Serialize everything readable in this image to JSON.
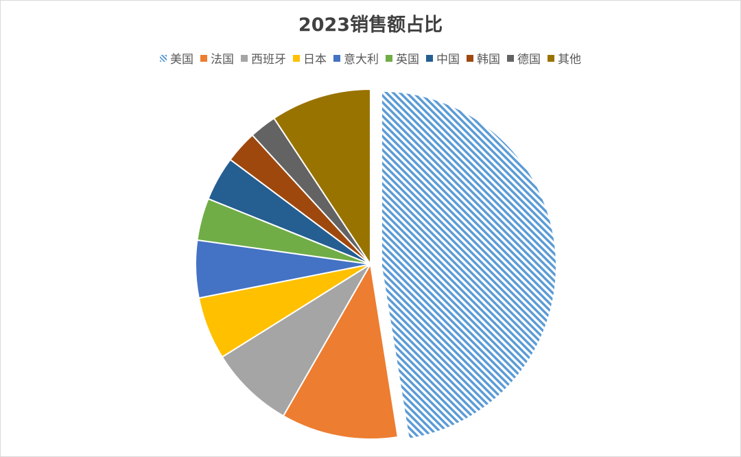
{
  "chart_data": {
    "type": "pie",
    "title": "2023销售额占比",
    "legend_position": "top",
    "categories": [
      "美国",
      "法国",
      "西班牙",
      "日本",
      "意大利",
      "英国",
      "中国",
      "韩国",
      "德国",
      "其他"
    ],
    "values": [
      47.5,
      10.8,
      7.8,
      5.8,
      5.3,
      3.9,
      4.1,
      3.0,
      2.5,
      9.3
    ],
    "colors": [
      "#5B9BD5",
      "#ED7D31",
      "#A5A5A5",
      "#FFC000",
      "#4472C4",
      "#70AD47",
      "#255E91",
      "#9E480E",
      "#636363",
      "#997300"
    ],
    "exploded": [
      "美国"
    ],
    "hatched": [
      "美国"
    ]
  }
}
